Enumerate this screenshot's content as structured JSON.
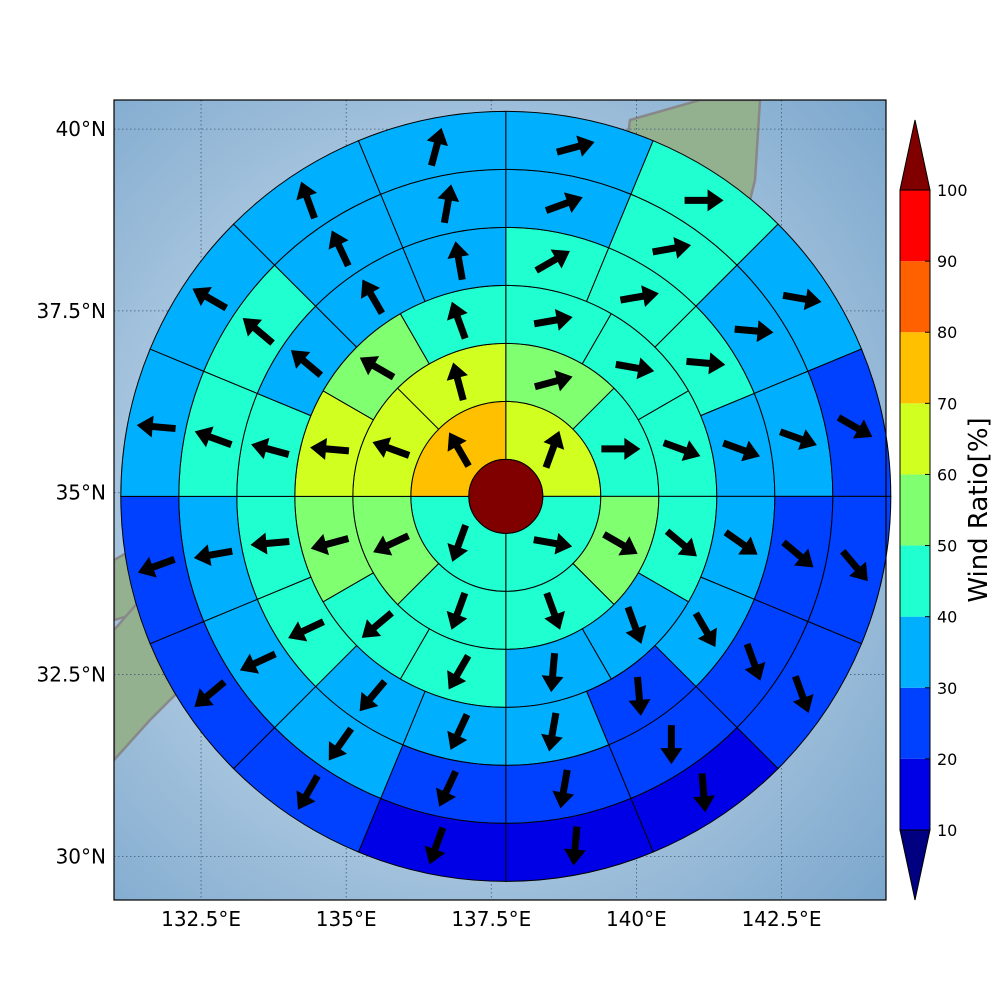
{
  "map": {
    "lat_ticks": [
      "30°N",
      "32.5°N",
      "35°N",
      "37.5°N",
      "40°N"
    ],
    "lon_ticks": [
      "132.5°E",
      "135°E",
      "137.5°E",
      "140°E",
      "142.5°E"
    ],
    "lon_range": [
      131.0,
      144.3
    ],
    "lat_range": [
      29.4,
      40.4
    ],
    "center": {
      "lon": 137.75,
      "lat": 34.95
    },
    "colors": {
      "land": "#8fae8a",
      "coast": "#888888",
      "sea": "#8fb4d2",
      "grid": "#3a5a78"
    }
  },
  "colorbar": {
    "label": "Wind Ratio[%]",
    "ticks": [
      "10",
      "20",
      "30",
      "40",
      "50",
      "60",
      "70",
      "80",
      "90",
      "100"
    ],
    "bins": [
      {
        "range": [
          10,
          20
        ],
        "color": "#0000e6"
      },
      {
        "range": [
          20,
          30
        ],
        "color": "#0040ff"
      },
      {
        "range": [
          30,
          40
        ],
        "color": "#00b0ff"
      },
      {
        "range": [
          40,
          50
        ],
        "color": "#20ffd0"
      },
      {
        "range": [
          50,
          60
        ],
        "color": "#80ff70"
      },
      {
        "range": [
          60,
          70
        ],
        "color": "#d0ff20"
      },
      {
        "range": [
          70,
          80
        ],
        "color": "#ffc000"
      },
      {
        "range": [
          80,
          90
        ],
        "color": "#ff6000"
      },
      {
        "range": [
          90,
          100
        ],
        "color": "#ff0000"
      }
    ],
    "under_color": "#000080",
    "over_color": "#800000"
  },
  "wind_grid": {
    "core_color": "#800000",
    "ring_sectors": [
      4,
      8,
      12,
      16,
      16,
      16
    ],
    "ring_values": [
      [
        62,
        45,
        45,
        72
      ],
      [
        55,
        45,
        55,
        45,
        45,
        55,
        62,
        62
      ],
      [
        45,
        45,
        45,
        45,
        35,
        35,
        45,
        45,
        55,
        62,
        55,
        45
      ],
      [
        45,
        45,
        45,
        35,
        35,
        35,
        25,
        35,
        35,
        35,
        45,
        45,
        45,
        35,
        35,
        35
      ],
      [
        35,
        45,
        35,
        35,
        25,
        25,
        25,
        25,
        25,
        35,
        35,
        35,
        45,
        45,
        35,
        35
      ],
      [
        35,
        45,
        35,
        25,
        25,
        25,
        15,
        15,
        15,
        25,
        25,
        25,
        35,
        35,
        35,
        35
      ]
    ],
    "arrow_directions_deg": [
      [
        20,
        100,
        200,
        330
      ],
      [
        75,
        90,
        120,
        160,
        200,
        245,
        290,
        345
      ],
      [
        80,
        100,
        110,
        130,
        160,
        185,
        210,
        230,
        255,
        275,
        300,
        340
      ],
      [
        60,
        80,
        95,
        110,
        125,
        150,
        175,
        190,
        205,
        220,
        245,
        265,
        285,
        310,
        330,
        350
      ],
      [
        70,
        80,
        95,
        110,
        130,
        160,
        180,
        190,
        205,
        215,
        245,
        260,
        290,
        310,
        335,
        10
      ],
      [
        75,
        90,
        100,
        120,
        140,
        160,
        175,
        185,
        200,
        210,
        230,
        250,
        275,
        300,
        340,
        15
      ]
    ]
  }
}
